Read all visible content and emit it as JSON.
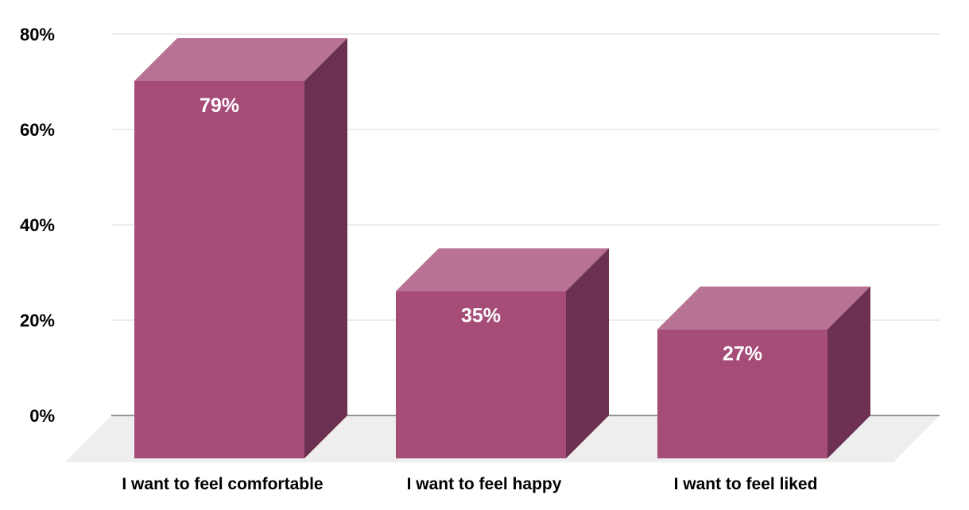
{
  "chart_data": {
    "type": "bar",
    "categories": [
      "I want to feel comfortable",
      "I want to feel happy",
      "I want to feel liked"
    ],
    "values": [
      79,
      35,
      27
    ],
    "value_labels": [
      "79%",
      "35%",
      "27%"
    ],
    "ylim": [
      0,
      80
    ],
    "yticks": [
      0,
      20,
      40,
      60,
      80
    ],
    "ytick_labels": [
      "0%",
      "20%",
      "40%",
      "60%",
      "80%"
    ],
    "grid": true,
    "style": "3d",
    "colors": {
      "front": "#a54d77",
      "top": "#b87294",
      "side": "#6c3150",
      "floor": "#eeeeee",
      "grid": "#d9d9d9",
      "baseline": "#333333"
    }
  }
}
